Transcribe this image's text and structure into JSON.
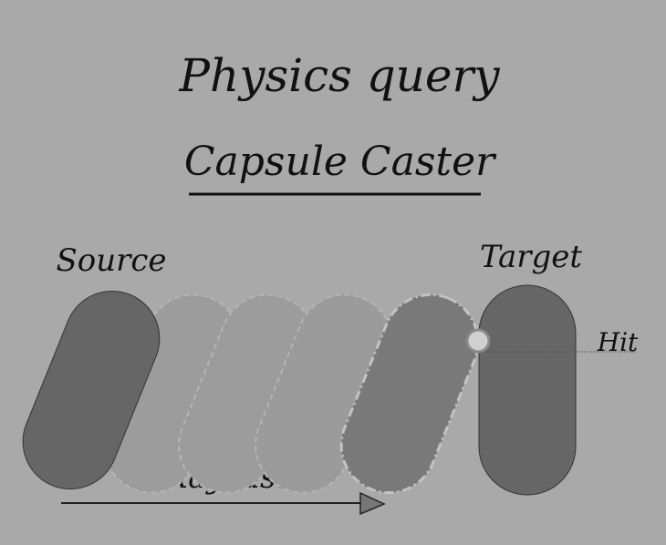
{
  "title": {
    "line1": "Physics query",
    "line2": "Capsule Caster"
  },
  "labels": {
    "source": "Source",
    "target": "Target",
    "hit": "Hit",
    "raycast": "Raycast"
  },
  "colors": {
    "background": "#a9a9a9",
    "source_capsule": "#666666",
    "target_capsule": "#666666",
    "ghost_capsule": "#9c9c9c",
    "last_capsule": "#7a7a7a",
    "hit_marker": "#d0d0d0",
    "ink": "#111111"
  }
}
